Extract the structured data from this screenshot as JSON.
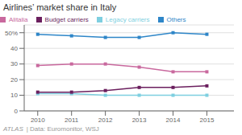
{
  "chart_data": {
    "type": "line",
    "title": "Airlines’ market share in Italy",
    "x": [
      2010,
      2011,
      2012,
      2013,
      2014,
      2015
    ],
    "xlim": [
      2009.6,
      2015.8
    ],
    "xticks": [
      2010,
      2011,
      2012,
      2013,
      2014,
      2015
    ],
    "series": [
      {
        "name": "Alitalia",
        "color": "#c9699e",
        "values": [
          29,
          30,
          30,
          28,
          25,
          25
        ]
      },
      {
        "name": "Legacy carriers",
        "color": "#7ecfe0",
        "values": [
          11,
          11,
          10,
          10,
          10,
          10
        ]
      },
      {
        "name": "Budget carriers",
        "color": "#6b1f5e",
        "values": [
          12,
          12,
          13,
          15,
          15,
          16
        ]
      },
      {
        "name": "Others",
        "color": "#2e86c8",
        "values": [
          49,
          48,
          47,
          47,
          50,
          49
        ]
      }
    ],
    "ylim": [
      0,
      55
    ],
    "yticks": [
      0,
      10,
      20,
      30,
      40,
      {
        "value": 50,
        "label": "50%"
      }
    ],
    "grid": true,
    "legend": "top left",
    "marker": "square",
    "annotations": [
      "ATLAS",
      "| Data: Euromonitor, WSJ"
    ]
  }
}
